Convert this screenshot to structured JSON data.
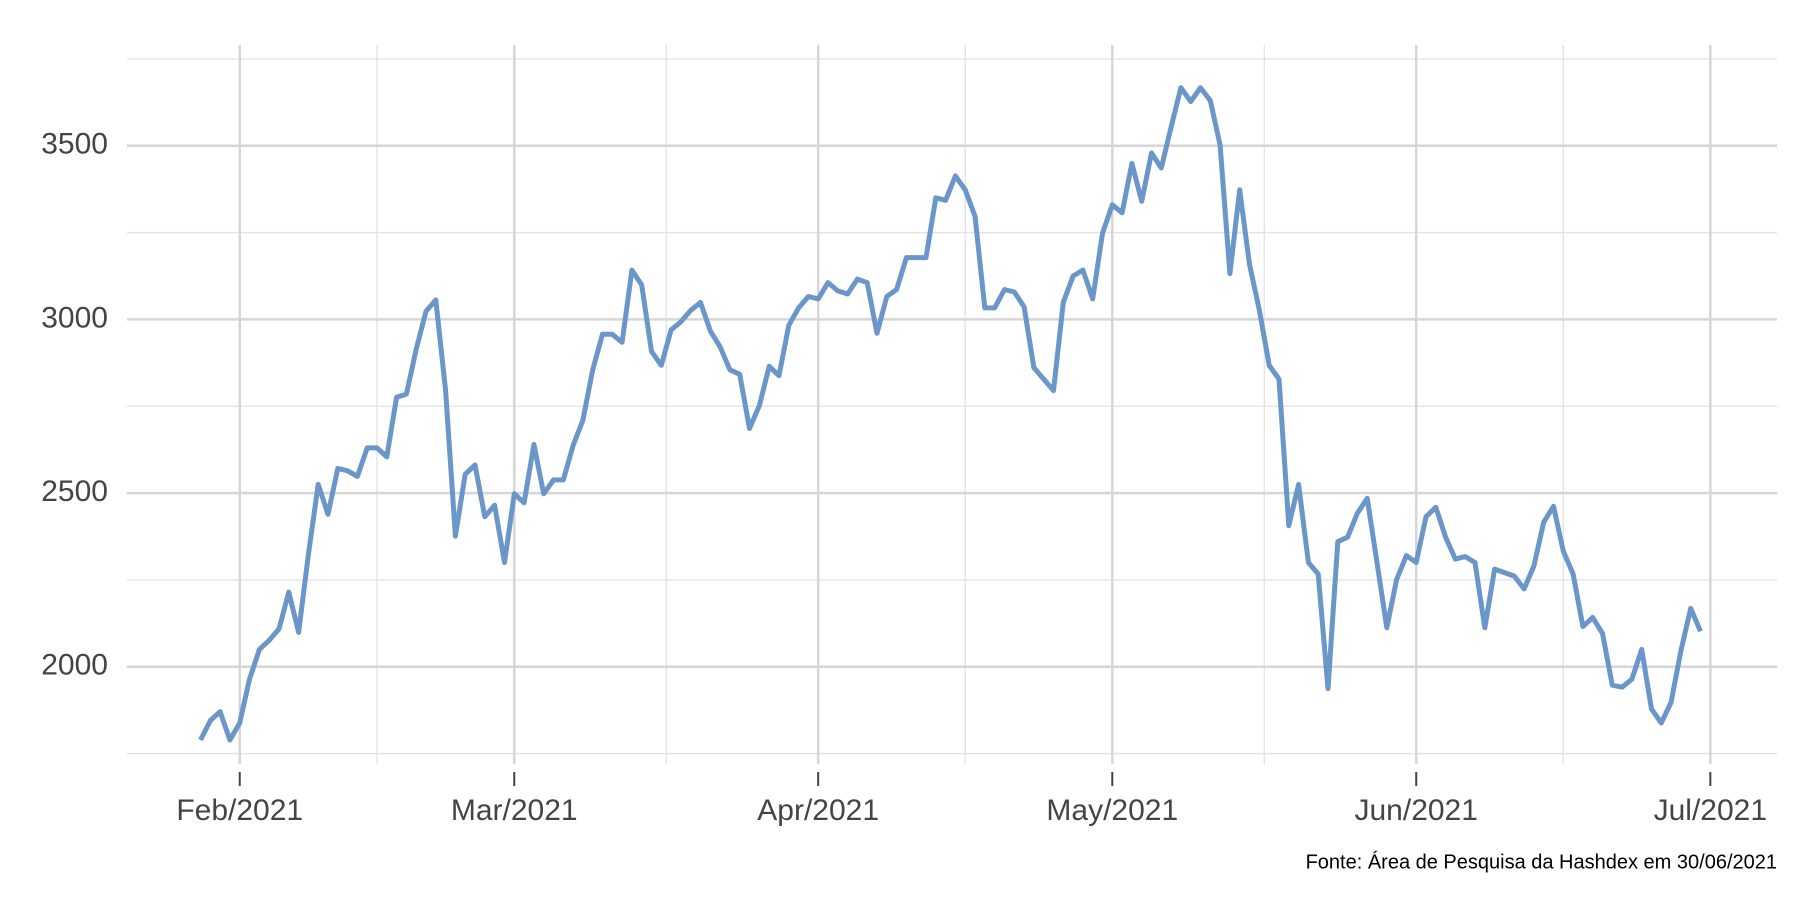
{
  "chart_data": {
    "type": "line",
    "caption": "Fonte: Área de Pesquisa da Hashdex em 30/06/2021",
    "color": "#6a96c9",
    "values": [
      1789,
      1845,
      1871,
      1789,
      1838,
      1964,
      2050,
      2076,
      2109,
      2215,
      2099,
      2323,
      2525,
      2439,
      2571,
      2564,
      2548,
      2630,
      2630,
      2604,
      2776,
      2785,
      2914,
      3023,
      3056,
      2795,
      2376,
      2554,
      2581,
      2432,
      2465,
      2300,
      2498,
      2472,
      2640,
      2498,
      2538,
      2538,
      2637,
      2710,
      2855,
      2957,
      2957,
      2934,
      3142,
      3099,
      2908,
      2868,
      2970,
      2993,
      3026,
      3049,
      2967,
      2921,
      2855,
      2842,
      2686,
      2752,
      2865,
      2838,
      2983,
      3033,
      3066,
      3059,
      3106,
      3082,
      3073,
      3116,
      3106,
      2960,
      3066,
      3086,
      3178,
      3178,
      3178,
      3350,
      3343,
      3413,
      3373,
      3297,
      3033,
      3033,
      3086,
      3079,
      3036,
      2861,
      2828,
      2795,
      3049,
      3125,
      3142,
      3059,
      3248,
      3330,
      3307,
      3449,
      3340,
      3479,
      3436,
      3554,
      3667,
      3627,
      3667,
      3630,
      3502,
      3132,
      3373,
      3158,
      3026,
      2868,
      2828,
      2406,
      2525,
      2300,
      2267,
      1937,
      2360,
      2373,
      2442,
      2485,
      2300,
      2112,
      2251,
      2320,
      2300,
      2432,
      2459,
      2373,
      2310,
      2317,
      2300,
      2112,
      2281,
      2271,
      2261,
      2224,
      2290,
      2416,
      2462,
      2333,
      2267,
      2116,
      2142,
      2096,
      1947,
      1941,
      1964,
      2050,
      1878,
      1838,
      1898,
      2046,
      2168,
      2102
    ],
    "xlim": [
      -7.5,
      160.8
    ],
    "xticks": [
      {
        "value": 4,
        "label": "Feb/2021"
      },
      {
        "value": 32,
        "label": "Mar/2021"
      },
      {
        "value": 63,
        "label": "Apr/2021"
      },
      {
        "value": 93,
        "label": "May/2021"
      },
      {
        "value": 124,
        "label": "Jun/2021"
      },
      {
        "value": 154,
        "label": "Jul/2021"
      }
    ],
    "ylim": [
      1720,
      3790
    ],
    "yticks": [
      2000,
      2500,
      3000,
      3500
    ],
    "grid": true
  }
}
